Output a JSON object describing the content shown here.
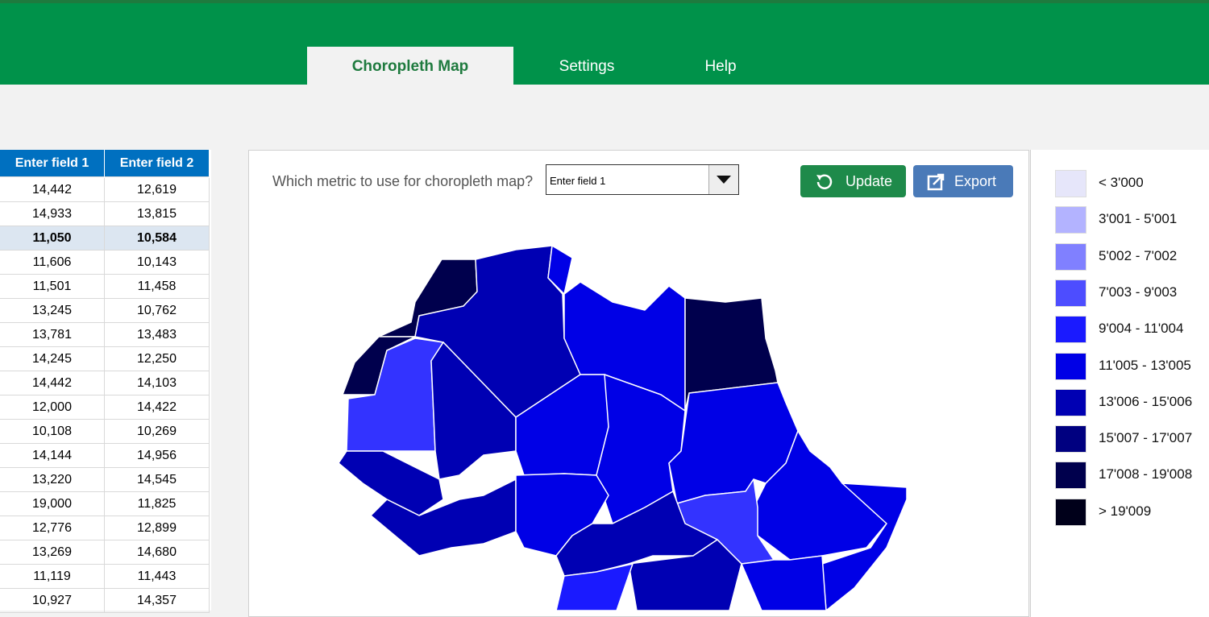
{
  "tabs": [
    "Choropleth Map",
    "Settings",
    "Help"
  ],
  "table": {
    "headers": [
      "Enter field 1",
      "Enter field 2"
    ],
    "rows": [
      [
        "14,442",
        "12,619"
      ],
      [
        "14,933",
        "13,815"
      ],
      [
        "11,050",
        "10,584"
      ],
      [
        "11,606",
        "10,143"
      ],
      [
        "11,501",
        "11,458"
      ],
      [
        "13,245",
        "10,762"
      ],
      [
        "13,781",
        "13,483"
      ],
      [
        "14,245",
        "12,250"
      ],
      [
        "14,442",
        "14,103"
      ],
      [
        "12,000",
        "14,422"
      ],
      [
        "10,108",
        "10,269"
      ],
      [
        "14,144",
        "14,956"
      ],
      [
        "13,220",
        "14,545"
      ],
      [
        "19,000",
        "11,825"
      ],
      [
        "12,776",
        "12,899"
      ],
      [
        "13,269",
        "14,680"
      ],
      [
        "11,119",
        "11,443"
      ],
      [
        "10,927",
        "14,357"
      ]
    ],
    "selected_row": 2
  },
  "controls": {
    "prompt": "Which metric to use for choropleth map?",
    "dropdown_value": "Enter field 1",
    "update": "Update",
    "export": "Export"
  },
  "legend": {
    "items": [
      {
        "label": "< 3'000",
        "color": "#e6e6fa"
      },
      {
        "label": "3'001 - 5'001",
        "color": "#b3b3ff"
      },
      {
        "label": "5'002 - 7'002",
        "color": "#8080ff"
      },
      {
        "label": "7'003 - 9'003",
        "color": "#4d4dff"
      },
      {
        "label": "9'004 - 11'004",
        "color": "#1a1aff"
      },
      {
        "label": "11'005 - 13'005",
        "color": "#0000e6"
      },
      {
        "label": "13'006 - 15'006",
        "color": "#0000b3"
      },
      {
        "label": "15'007 - 17'007",
        "color": "#000080"
      },
      {
        "label": "17'008 - 19'008",
        "color": "#00004d"
      },
      {
        "label": "> 19'009",
        "color": "#00001a"
      }
    ]
  }
}
